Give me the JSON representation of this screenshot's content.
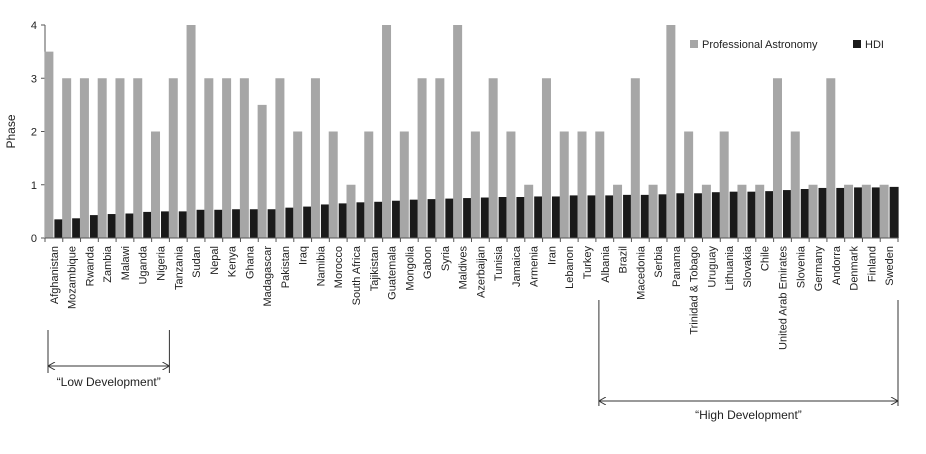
{
  "chart_data": {
    "type": "bar",
    "title": "",
    "xlabel": "",
    "ylabel": "Phase",
    "ylim": [
      0,
      4
    ],
    "yticks": [
      "0",
      "1",
      "2",
      "3",
      "4"
    ],
    "legend_position": "top-right",
    "grid": false,
    "categories": [
      "Afghanistan",
      "Mozambique",
      "Rwanda",
      "Zambia",
      "Malawi",
      "Uganda",
      "Nigeria",
      "Tanzania",
      "Sudan",
      "Nepal",
      "Kenya",
      "Ghana",
      "Madagascar",
      "Pakistan",
      "Iraq",
      "Namibia",
      "Morocco",
      "South Africa",
      "Tajikistan",
      "Guatemala",
      "Mongolia",
      "Gabon",
      "Syria",
      "Maldives",
      "Azerbaijan",
      "Tunisia",
      "Jamaica",
      "Armenia",
      "Iran",
      "Lebanon",
      "Turkey",
      "Albania",
      "Brazil",
      "Macedonia",
      "Serbia",
      "Panama",
      "Trinidad & Tobago",
      "Uruguay",
      "Lithuania",
      "Slovakia",
      "Chile",
      "United Arab Emirates",
      "Slovenia",
      "Germany",
      "Andorra",
      "Denmark",
      "Finland",
      "Sweden"
    ],
    "series": [
      {
        "name": "Professional Astronomy",
        "color": "#a6a6a6",
        "values": [
          3.5,
          3,
          3,
          3,
          3,
          3,
          2,
          3,
          4,
          3,
          3,
          3,
          2.5,
          3,
          2,
          3,
          2,
          1,
          2,
          4,
          2,
          3,
          3,
          4,
          2,
          3,
          2,
          1,
          3,
          2,
          2,
          2,
          1,
          3,
          1,
          4,
          2,
          1,
          2,
          1,
          1,
          3,
          2,
          1,
          3,
          1,
          1,
          1
        ]
      },
      {
        "name": "HDI",
        "color": "#1a1a1a",
        "values": [
          0.35,
          0.37,
          0.43,
          0.45,
          0.46,
          0.49,
          0.5,
          0.5,
          0.53,
          0.53,
          0.54,
          0.54,
          0.54,
          0.57,
          0.59,
          0.63,
          0.65,
          0.67,
          0.68,
          0.7,
          0.72,
          0.73,
          0.74,
          0.75,
          0.76,
          0.77,
          0.77,
          0.78,
          0.78,
          0.8,
          0.8,
          0.8,
          0.81,
          0.81,
          0.82,
          0.84,
          0.84,
          0.86,
          0.87,
          0.87,
          0.88,
          0.9,
          0.92,
          0.94,
          0.94,
          0.95,
          0.95,
          0.96
        ]
      }
    ],
    "annotations": [
      {
        "text": "“Low Development”",
        "from_category": "Afghanistan",
        "to_category": "Nigeria"
      },
      {
        "text": "“High Development”",
        "from_category": "Albania",
        "to_category": "Sweden"
      }
    ]
  }
}
